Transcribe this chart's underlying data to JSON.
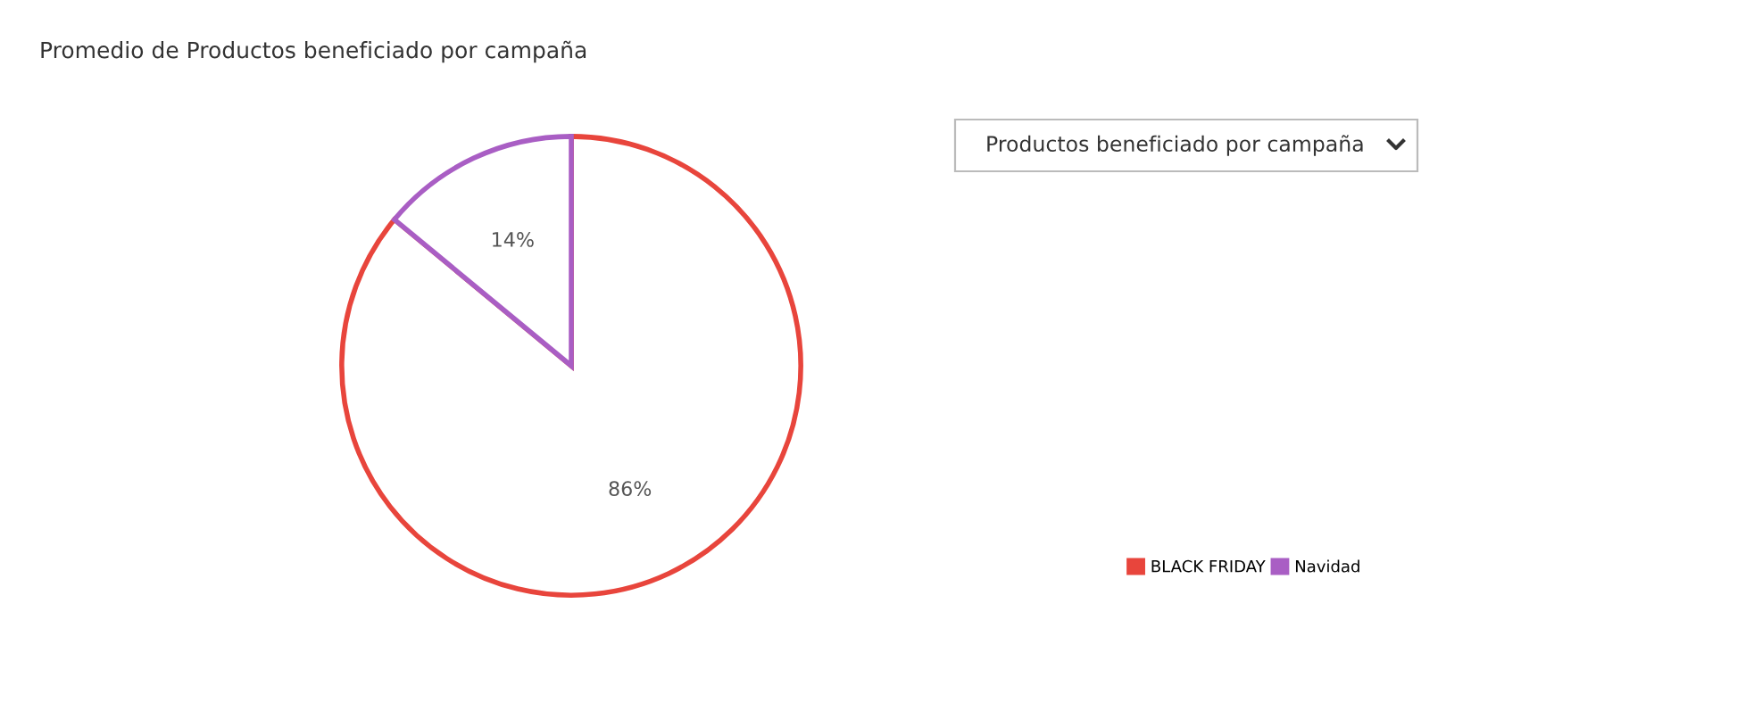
{
  "chart_data": {
    "type": "pie",
    "title": "Promedio de Productos beneficiado por campaña",
    "categories": [
      "BLACK FRIDAY",
      "Navidad"
    ],
    "values": [
      86,
      14
    ],
    "colors": [
      "#e8453c",
      "#a95ec4"
    ],
    "value_labels": [
      "86%",
      "14%"
    ],
    "annotations": [
      "Productos beneficiado por campaña"
    ],
    "legend": "right"
  }
}
